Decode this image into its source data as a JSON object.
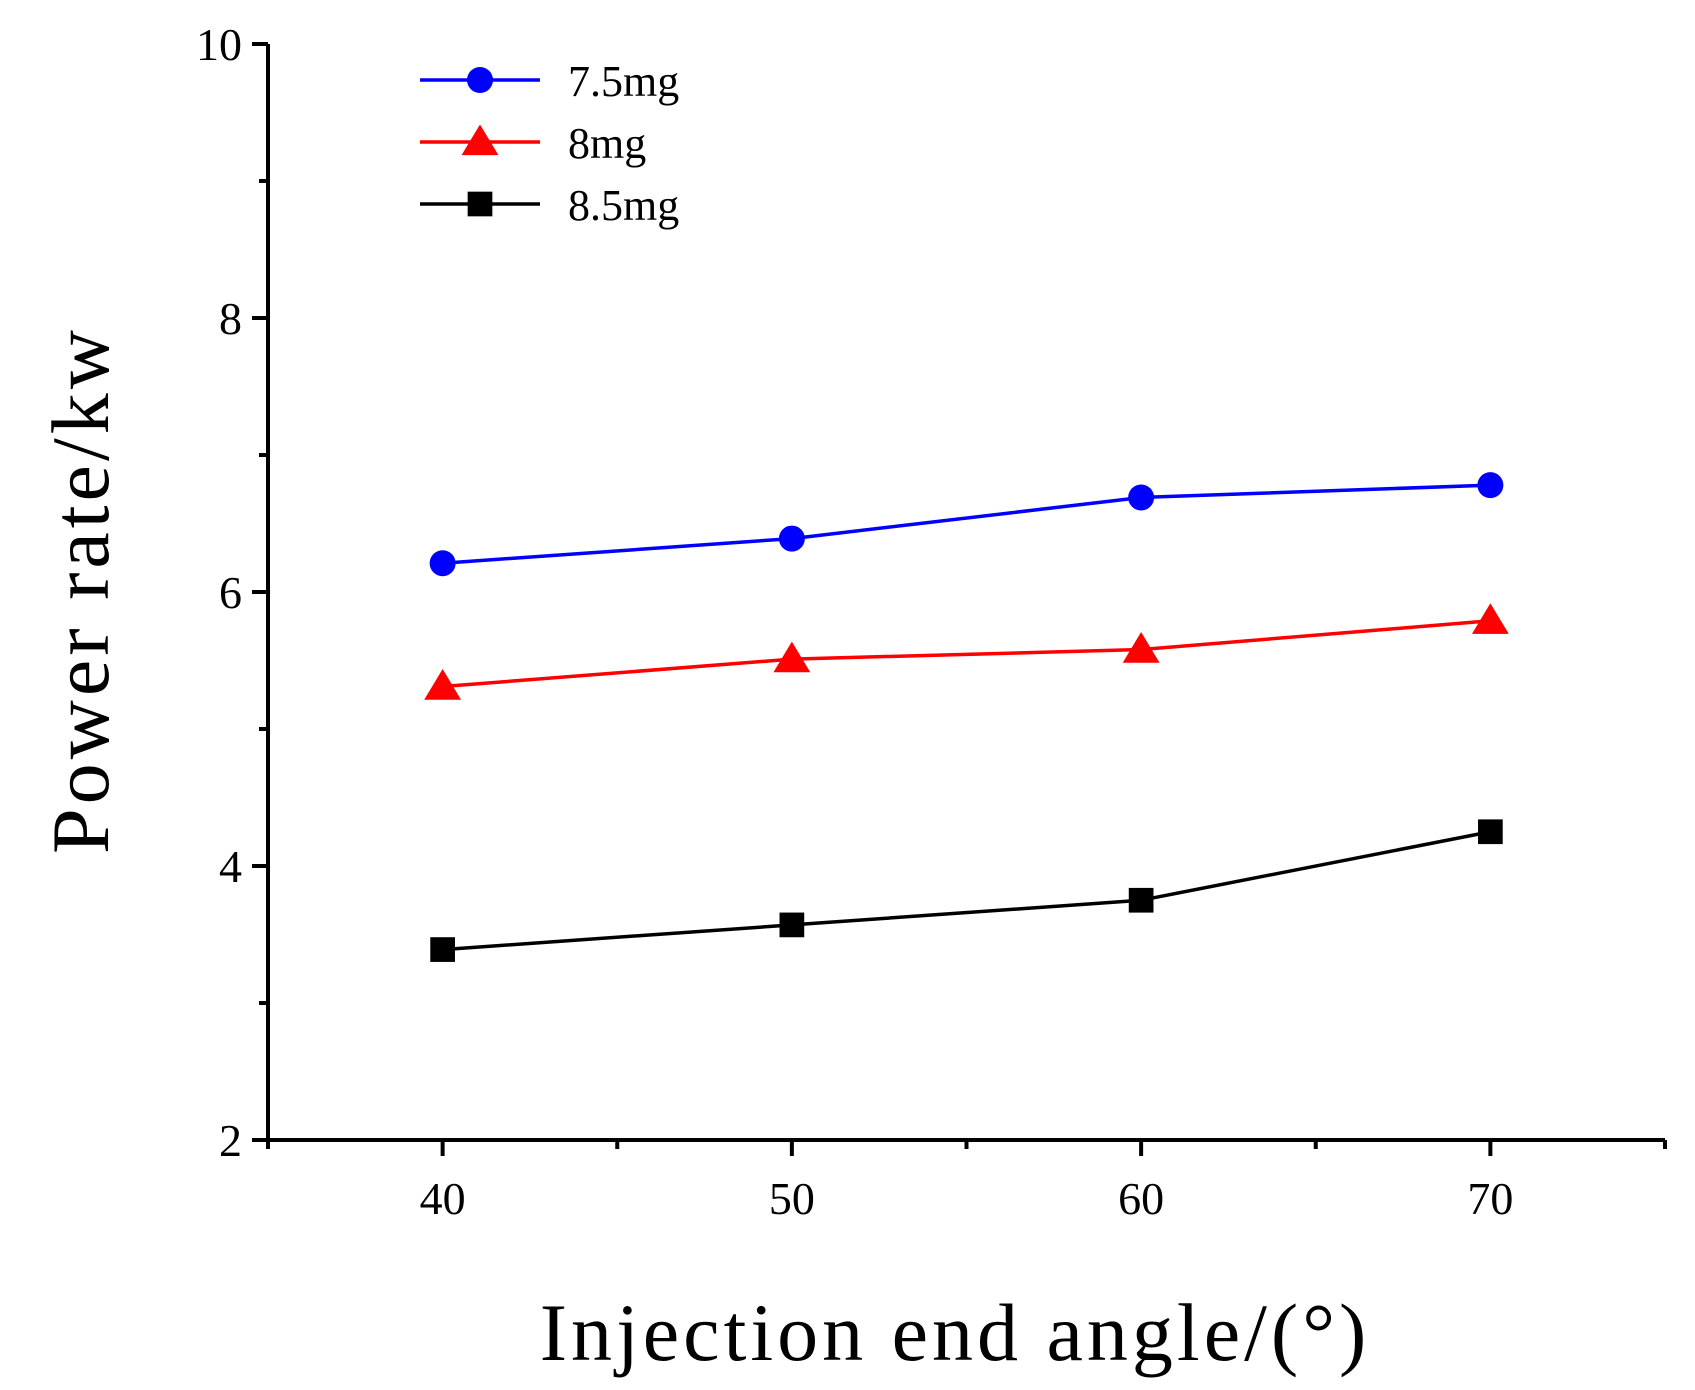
{
  "chart_data": {
    "type": "line",
    "title": "",
    "xlabel": "Injection end angle/(°)",
    "ylabel": "Power rate/kw",
    "xlim": [
      35,
      75
    ],
    "ylim": [
      2,
      10
    ],
    "xticks": [
      40,
      50,
      60,
      70
    ],
    "yticks": [
      2,
      4,
      6,
      8,
      10
    ],
    "grid": false,
    "legend_position": "top-left",
    "x": [
      40,
      50,
      60,
      70
    ],
    "series": [
      {
        "name": "7.5mg",
        "values": [
          6.21,
          6.39,
          6.69,
          6.78
        ],
        "color": "#0000ff",
        "marker": "circle"
      },
      {
        "name": "8mg",
        "values": [
          5.31,
          5.51,
          5.58,
          5.79
        ],
        "color": "#ff0000",
        "marker": "triangle"
      },
      {
        "name": "8.5mg",
        "values": [
          3.39,
          3.57,
          3.75,
          4.25
        ],
        "color": "#000000",
        "marker": "square"
      }
    ]
  }
}
